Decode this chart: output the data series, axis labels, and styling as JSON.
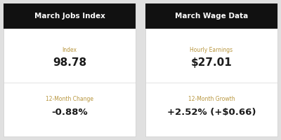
{
  "left_title": "March Jobs Index",
  "right_title": "March Wage Data",
  "left_label1": "Index",
  "left_value1": "98.78",
  "left_label2": "12-Month Change",
  "left_value2": "-0.88%",
  "right_label1": "Hourly Earnings",
  "right_value1": "$27.01",
  "right_label2": "12-Month Growth",
  "right_value2": "+2.52% (+$0.66)",
  "header_bg": "#111111",
  "header_fg": "#ffffff",
  "body_bg": "#ffffff",
  "label_color": "#b8963e",
  "value_color": "#1a1a1a",
  "divider_color": "#d8d8d8",
  "outer_bg": "#e0e0e0",
  "title_fontsize": 7.5,
  "label_fontsize": 5.5,
  "value_fontsize1": 11,
  "value_fontsize2": 9.5
}
